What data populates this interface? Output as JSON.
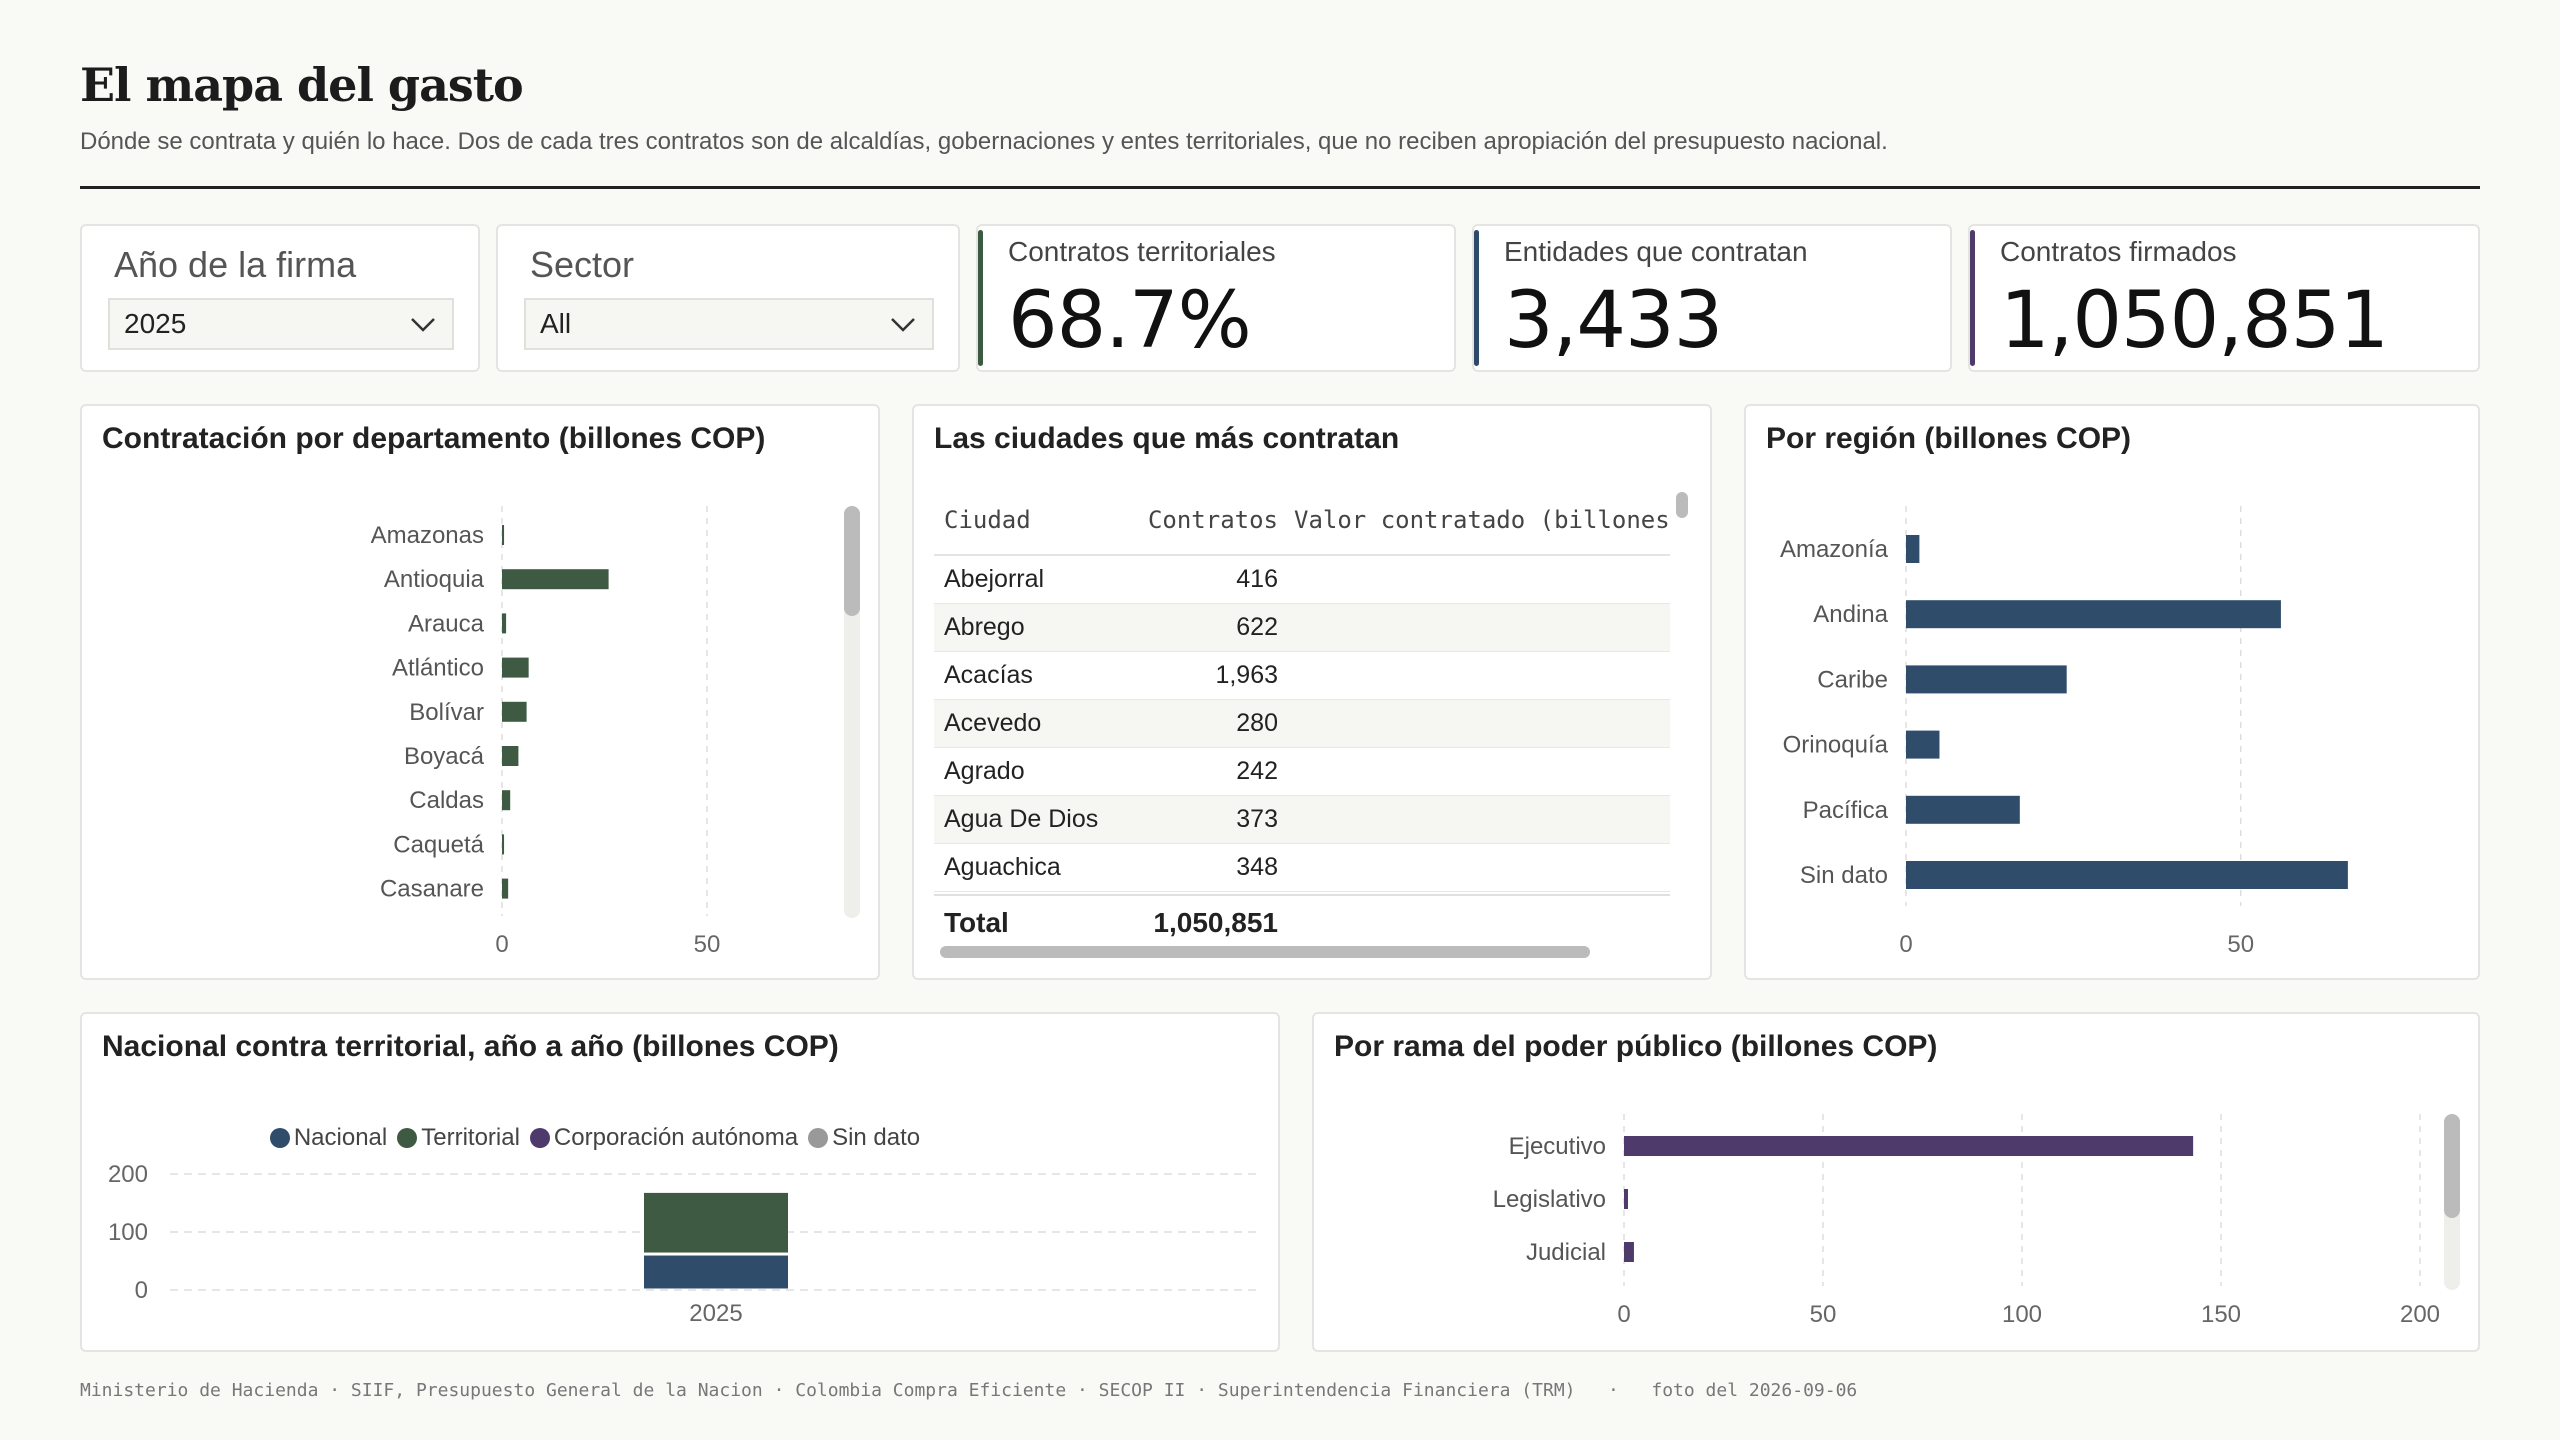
{
  "header": {
    "title": "El mapa del gasto",
    "subtitle": "Dónde se contrata y quién lo hace. Dos de cada tres contratos son de alcaldías, gobernaciones y entes territoriales, que no reciben apropiación del presupuesto nacional."
  },
  "filters": {
    "year": {
      "label": "Año de la firma",
      "value": "2025"
    },
    "sector": {
      "label": "Sector",
      "value": "All"
    }
  },
  "kpis": [
    {
      "label": "Contratos territoriales",
      "value": "68.7%",
      "color": "#3c5a40"
    },
    {
      "label": "Entidades que contratan",
      "value": "3,433",
      "color": "#2d4a66"
    },
    {
      "label": "Contratos firmados",
      "value": "1,050,851",
      "color": "#4e3a6b"
    }
  ],
  "colors": {
    "territorial": "#3f5a42",
    "nacional": "#2f4d6b",
    "corporacion": "#4e3a6b",
    "sin_dato": "#999999"
  },
  "departamento": {
    "title": "Contratación por departamento (billones COP)",
    "chart_data": {
      "type": "bar",
      "orientation": "horizontal",
      "categories": [
        "Amazonas",
        "Antioquia",
        "Arauca",
        "Atlántico",
        "Bolívar",
        "Boyacá",
        "Caldas",
        "Caquetá",
        "Casanare"
      ],
      "values": [
        0.5,
        26,
        1,
        6.5,
        6,
        4,
        2,
        0.5,
        1.5
      ],
      "xticks": [
        0,
        50
      ],
      "xlim": [
        0,
        100
      ]
    }
  },
  "ciudades": {
    "title": "Las ciudades que más contratan",
    "columns": [
      "Ciudad",
      "Contratos",
      "Valor contratado (billones"
    ],
    "rows": [
      {
        "ciudad": "Abejorral",
        "contratos": "416"
      },
      {
        "ciudad": "Abrego",
        "contratos": "622"
      },
      {
        "ciudad": "Acacías",
        "contratos": "1,963"
      },
      {
        "ciudad": "Acevedo",
        "contratos": "280"
      },
      {
        "ciudad": "Agrado",
        "contratos": "242"
      },
      {
        "ciudad": "Agua De Dios",
        "contratos": "373"
      },
      {
        "ciudad": "Aguachica",
        "contratos": "348"
      }
    ],
    "total_label": "Total",
    "total_value": "1,050,851"
  },
  "region": {
    "title": "Por región (billones COP)",
    "chart_data": {
      "type": "bar",
      "orientation": "horizontal",
      "categories": [
        "Amazonía",
        "Andina",
        "Caribe",
        "Orinoquía",
        "Pacífica",
        "Sin dato"
      ],
      "values": [
        2,
        56,
        24,
        5,
        17,
        66
      ],
      "xticks": [
        0,
        50
      ],
      "xlim": [
        0,
        82
      ]
    }
  },
  "nacional_territorial": {
    "title": "Nacional contra territorial, año a año (billones COP)",
    "legend": [
      "Nacional",
      "Territorial",
      "Corporación autónoma",
      "Sin dato"
    ],
    "chart_data": {
      "type": "bar",
      "stacked": true,
      "categories": [
        "2025"
      ],
      "series": [
        {
          "name": "Nacional",
          "values": [
            62
          ]
        },
        {
          "name": "Territorial",
          "values": [
            108
          ]
        },
        {
          "name": "Corporación autónoma",
          "values": [
            0
          ]
        },
        {
          "name": "Sin dato",
          "values": [
            0
          ]
        }
      ],
      "yticks": [
        0,
        100,
        200
      ],
      "ylim": [
        0,
        200
      ]
    }
  },
  "rama": {
    "title": "Por rama del poder público (billones COP)",
    "chart_data": {
      "type": "bar",
      "orientation": "horizontal",
      "categories": [
        "Ejecutivo",
        "Legislativo",
        "Judicial"
      ],
      "values": [
        143,
        1,
        2.5
      ],
      "xticks": [
        0,
        50,
        100,
        150,
        200
      ],
      "xlim": [
        0,
        200
      ]
    }
  },
  "footer": {
    "sources": "Ministerio de Hacienda · SIIF, Presupuesto General de la Nacion · Colombia Compra Eficiente · SECOP II · Superintendencia Financiera (TRM)   ·   foto del 2026-09-06"
  }
}
